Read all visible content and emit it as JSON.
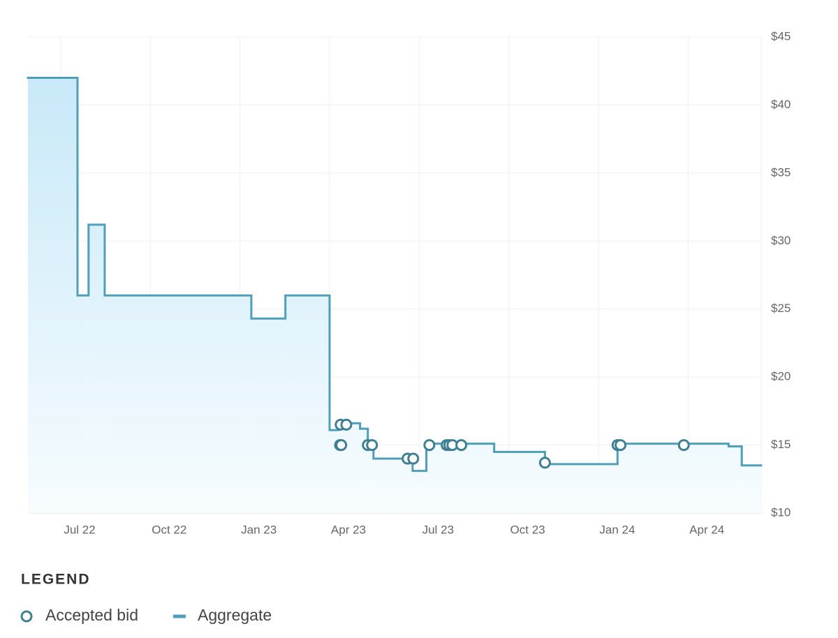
{
  "chart_data": {
    "type": "line",
    "legend_title": "LEGEND",
    "xlim": [
      4.9,
      29.45
    ],
    "xticks": [
      {
        "value": 6,
        "label": "Jul 22"
      },
      {
        "value": 9,
        "label": "Oct 22"
      },
      {
        "value": 12,
        "label": "Jan 23"
      },
      {
        "value": 15,
        "label": "Apr 23"
      },
      {
        "value": 18,
        "label": "Jul 23"
      },
      {
        "value": 21,
        "label": "Oct 23"
      },
      {
        "value": 24,
        "label": "Jan 24"
      },
      {
        "value": 27,
        "label": "Apr 24"
      }
    ],
    "ylim": [
      10,
      45
    ],
    "yticks": [
      {
        "value": 10,
        "label": "$10"
      },
      {
        "value": 15,
        "label": "$15"
      },
      {
        "value": 20,
        "label": "$20"
      },
      {
        "value": 25,
        "label": "$25"
      },
      {
        "value": 30,
        "label": "$30"
      },
      {
        "value": 35,
        "label": "$35"
      },
      {
        "value": 40,
        "label": "$40"
      },
      {
        "value": 45,
        "label": "$45"
      }
    ],
    "grid": true,
    "series": [
      {
        "name": "Accepted bid",
        "type": "scatter",
        "color": "#3f7f93",
        "x": [
          15.35,
          15.39,
          15.37,
          15.56,
          16.28,
          16.42,
          17.61,
          17.8,
          18.34,
          18.92,
          19.01,
          19.11,
          19.41,
          22.21,
          24.64,
          24.74,
          26.86
        ],
        "values": [
          15,
          15,
          16.5,
          16.5,
          15,
          15,
          14,
          14,
          15,
          15,
          15,
          15,
          15,
          13.7,
          15,
          15,
          15
        ]
      },
      {
        "name": "Aggregate",
        "type": "step",
        "color": "#4f9fb8",
        "x": [
          4.9,
          6.56,
          6.93,
          7.47,
          12.38,
          13.52,
          15.0,
          15.3,
          16.02,
          16.28,
          16.47,
          17.78,
          18.24,
          20.51,
          22.21,
          24.64,
          28.36,
          28.8
        ],
        "values": [
          42,
          26,
          31.2,
          26,
          24.3,
          26,
          16.1,
          16.6,
          16.2,
          15,
          14,
          13.1,
          15.1,
          14.5,
          13.6,
          15.1,
          14.9,
          13.5
        ]
      }
    ]
  }
}
